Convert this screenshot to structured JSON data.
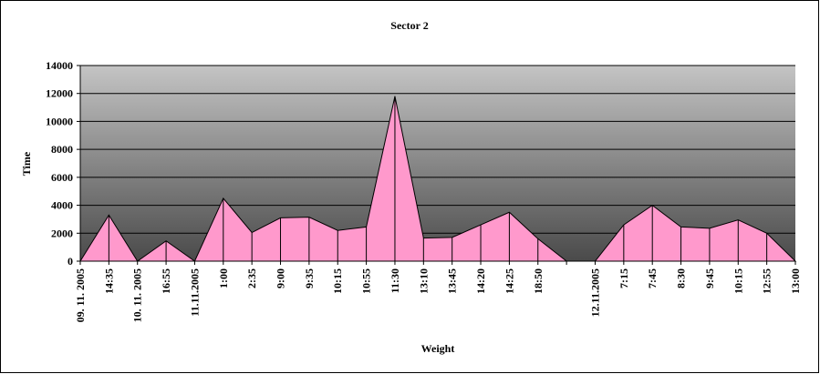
{
  "chart_data": {
    "type": "area",
    "title": "Sector 2",
    "x_label": "Weight",
    "y_label": "Time",
    "categories": [
      "09. 11. 2005",
      "14:35",
      "10. 11. 2005",
      "16:55",
      "11.11.2005",
      "1:00",
      "2:35",
      "9:00",
      "9:35",
      "10:15",
      "10:55",
      "11:30",
      "13:10",
      "13:45",
      "14:20",
      "14:25",
      "18:50",
      null,
      "12.11.2005",
      "7:15",
      "7:45",
      "8:30",
      "9:45",
      "10:15",
      "12:55",
      "13:00"
    ],
    "values": [
      0,
      3300,
      0,
      1450,
      0,
      4500,
      2050,
      3100,
      3150,
      2200,
      2450,
      11800,
      1650,
      1700,
      2600,
      3500,
      1600,
      0,
      0,
      2600,
      4000,
      2450,
      2350,
      2950,
      2000,
      0
    ],
    "color": "#ff99cc",
    "ylim": [
      0,
      14000
    ],
    "yticks": [
      0,
      2000,
      4000,
      6000,
      8000,
      10000,
      12000,
      14000
    ],
    "grid": true
  }
}
